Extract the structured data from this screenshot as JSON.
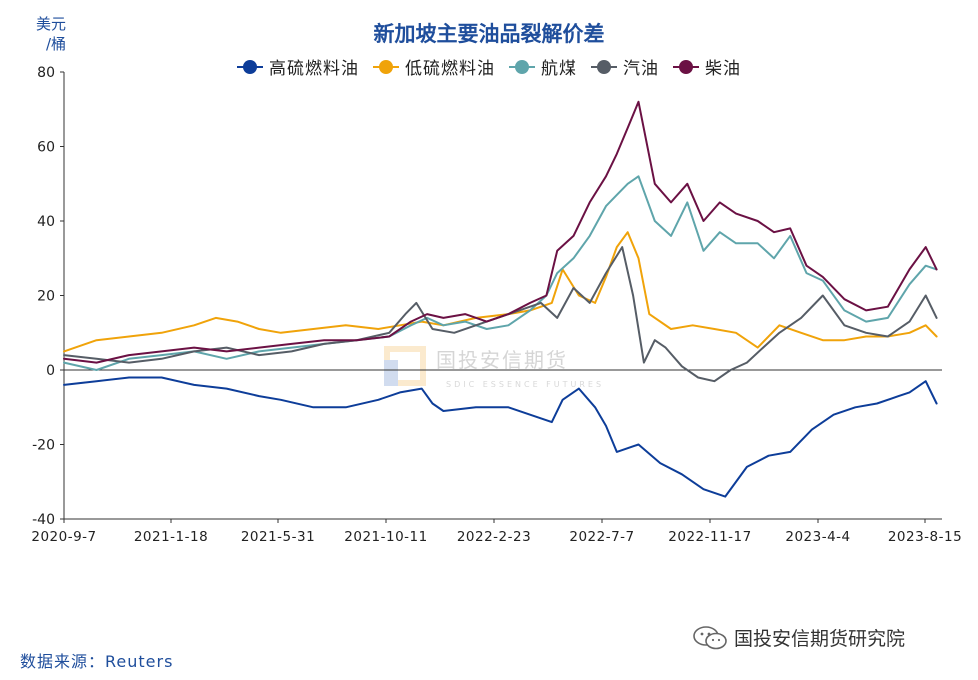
{
  "unit_label": "美元\n/桶",
  "source": "数据来源：Reuters",
  "brand": "国投安信期货研究院",
  "watermark": "国投安信期货",
  "watermark_sub": "SDIC ESSENCE FUTURES",
  "chart_data": {
    "type": "line",
    "title": "新加坡主要油品裂解价差",
    "ylabel": "美元/桶",
    "ylim": [
      -40,
      80
    ],
    "yticks": [
      -40,
      -20,
      0,
      20,
      40,
      60,
      80
    ],
    "x_ticks": [
      "2020-9-7",
      "2021-1-18",
      "2021-5-31",
      "2021-10-11",
      "2022-2-23",
      "2022-7-7",
      "2022-11-17",
      "2023-4-4",
      "2023-8-15"
    ],
    "x_range": [
      0,
      8.1
    ],
    "legend_position": "top-center",
    "series": [
      {
        "name": "高硫燃料油",
        "color": "#0d3d99",
        "x": [
          0,
          0.3,
          0.6,
          0.9,
          1.2,
          1.5,
          1.8,
          2.0,
          2.3,
          2.6,
          2.9,
          3.1,
          3.3,
          3.4,
          3.5,
          3.8,
          4.1,
          4.3,
          4.5,
          4.6,
          4.75,
          4.9,
          5.0,
          5.1,
          5.3,
          5.5,
          5.7,
          5.9,
          6.1,
          6.3,
          6.5,
          6.7,
          6.9,
          7.1,
          7.3,
          7.5,
          7.7,
          7.8,
          7.95,
          8.05
        ],
        "y": [
          -4,
          -3,
          -2,
          -2,
          -4,
          -5,
          -7,
          -8,
          -10,
          -10,
          -8,
          -6,
          -5,
          -9,
          -11,
          -10,
          -10,
          -12,
          -14,
          -8,
          -5,
          -10,
          -15,
          -22,
          -20,
          -25,
          -28,
          -32,
          -34,
          -26,
          -23,
          -22,
          -16,
          -12,
          -10,
          -9,
          -7,
          -6,
          -3,
          -9
        ]
      },
      {
        "name": "低硫燃料油",
        "color": "#f0a30a",
        "x": [
          0,
          0.3,
          0.6,
          0.9,
          1.2,
          1.4,
          1.6,
          1.8,
          2.0,
          2.3,
          2.6,
          2.9,
          3.1,
          3.3,
          3.5,
          3.8,
          4.1,
          4.3,
          4.5,
          4.6,
          4.75,
          4.9,
          5.0,
          5.1,
          5.2,
          5.3,
          5.4,
          5.6,
          5.8,
          6.0,
          6.2,
          6.4,
          6.6,
          6.8,
          7.0,
          7.2,
          7.4,
          7.6,
          7.8,
          7.95,
          8.05
        ],
        "y": [
          5,
          8,
          9,
          10,
          12,
          14,
          13,
          11,
          10,
          11,
          12,
          11,
          12,
          13,
          12,
          14,
          15,
          16,
          18,
          27,
          20,
          18,
          25,
          33,
          37,
          30,
          15,
          11,
          12,
          11,
          10,
          6,
          12,
          10,
          8,
          8,
          9,
          9,
          10,
          12,
          9
        ]
      },
      {
        "name": "航煤",
        "color": "#5fa5ab",
        "x": [
          0,
          0.3,
          0.6,
          0.9,
          1.2,
          1.5,
          1.8,
          2.1,
          2.4,
          2.7,
          3.0,
          3.2,
          3.35,
          3.5,
          3.7,
          3.9,
          4.1,
          4.3,
          4.45,
          4.55,
          4.7,
          4.85,
          5.0,
          5.1,
          5.2,
          5.3,
          5.45,
          5.6,
          5.75,
          5.9,
          6.05,
          6.2,
          6.4,
          6.55,
          6.7,
          6.85,
          7.0,
          7.2,
          7.4,
          7.6,
          7.8,
          7.95,
          8.05
        ],
        "y": [
          2,
          0,
          3,
          4,
          5,
          3,
          5,
          6,
          7,
          8,
          9,
          12,
          14,
          12,
          13,
          11,
          12,
          16,
          20,
          26,
          30,
          36,
          44,
          47,
          50,
          52,
          40,
          36,
          45,
          32,
          37,
          34,
          34,
          30,
          36,
          26,
          24,
          16,
          13,
          14,
          23,
          28,
          27
        ]
      },
      {
        "name": "汽油",
        "color": "#565d66",
        "x": [
          0,
          0.3,
          0.6,
          0.9,
          1.2,
          1.5,
          1.8,
          2.1,
          2.4,
          2.7,
          3.0,
          3.15,
          3.25,
          3.4,
          3.6,
          3.9,
          4.2,
          4.4,
          4.55,
          4.7,
          4.85,
          5.0,
          5.15,
          5.25,
          5.35,
          5.45,
          5.55,
          5.7,
          5.85,
          6.0,
          6.15,
          6.3,
          6.45,
          6.6,
          6.8,
          7.0,
          7.2,
          7.4,
          7.6,
          7.8,
          7.95,
          8.05
        ],
        "y": [
          4,
          3,
          2,
          3,
          5,
          6,
          4,
          5,
          7,
          8,
          10,
          15,
          18,
          11,
          10,
          13,
          16,
          18,
          14,
          22,
          18,
          26,
          33,
          20,
          2,
          8,
          6,
          1,
          -2,
          -3,
          0,
          2,
          6,
          10,
          14,
          20,
          12,
          10,
          9,
          13,
          20,
          14
        ]
      },
      {
        "name": "柴油",
        "color": "#6b1144",
        "x": [
          0,
          0.3,
          0.6,
          0.9,
          1.2,
          1.5,
          1.8,
          2.1,
          2.4,
          2.7,
          3.0,
          3.2,
          3.35,
          3.5,
          3.7,
          3.9,
          4.1,
          4.3,
          4.45,
          4.55,
          4.7,
          4.85,
          5.0,
          5.1,
          5.2,
          5.3,
          5.45,
          5.6,
          5.75,
          5.9,
          6.05,
          6.2,
          6.4,
          6.55,
          6.7,
          6.85,
          7.0,
          7.2,
          7.4,
          7.6,
          7.8,
          7.95,
          8.05
        ],
        "y": [
          3,
          2,
          4,
          5,
          6,
          5,
          6,
          7,
          8,
          8,
          9,
          13,
          15,
          14,
          15,
          13,
          15,
          18,
          20,
          32,
          36,
          45,
          52,
          58,
          65,
          72,
          50,
          45,
          50,
          40,
          45,
          42,
          40,
          37,
          38,
          28,
          25,
          19,
          16,
          17,
          27,
          33,
          27
        ]
      }
    ]
  }
}
